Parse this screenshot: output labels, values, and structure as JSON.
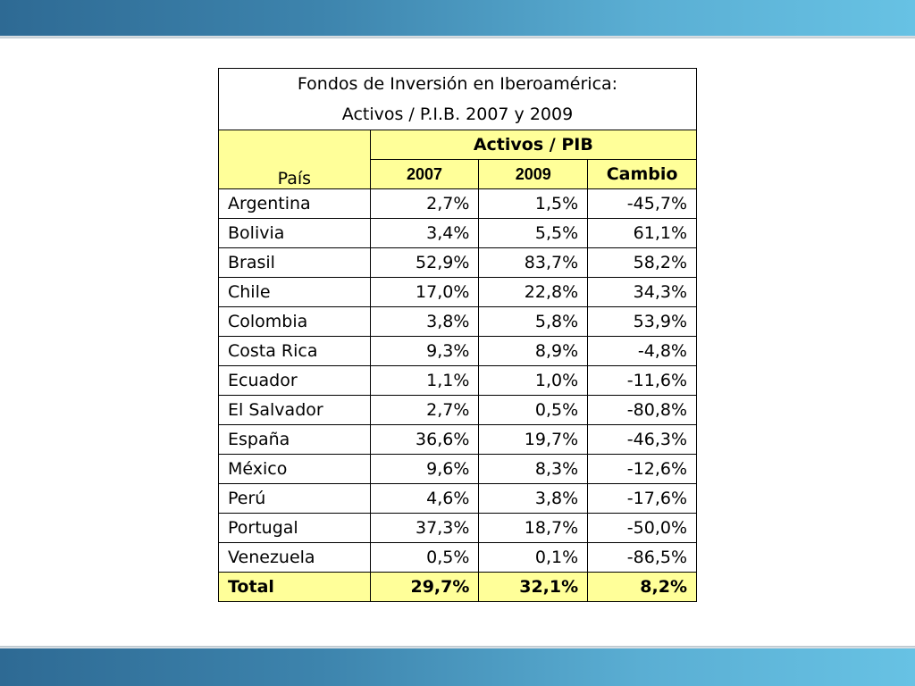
{
  "title_line1": "Fondos de Inversión en Iberoamérica:",
  "title_line2": "Activos / P.I.B. 2007 y 2009",
  "header": {
    "pais": "País",
    "group": "Activos / PIB",
    "col_2007": "2007",
    "col_2009": "2009",
    "col_cambio": "Cambio"
  },
  "rows": [
    {
      "pais": "Argentina",
      "v2007": "2,7%",
      "v2009": "1,5%",
      "cambio": "-45,7%"
    },
    {
      "pais": "Bolivia",
      "v2007": "3,4%",
      "v2009": "5,5%",
      "cambio": "61,1%"
    },
    {
      "pais": "Brasil",
      "v2007": "52,9%",
      "v2009": "83,7%",
      "cambio": "58,2%"
    },
    {
      "pais": "Chile",
      "v2007": "17,0%",
      "v2009": "22,8%",
      "cambio": "34,3%"
    },
    {
      "pais": "Colombia",
      "v2007": "3,8%",
      "v2009": "5,8%",
      "cambio": "53,9%"
    },
    {
      "pais": "Costa Rica",
      "v2007": "9,3%",
      "v2009": "8,9%",
      "cambio": "-4,8%"
    },
    {
      "pais": "Ecuador",
      "v2007": "1,1%",
      "v2009": "1,0%",
      "cambio": "-11,6%"
    },
    {
      "pais": "El Salvador",
      "v2007": "2,7%",
      "v2009": "0,5%",
      "cambio": "-80,8%"
    },
    {
      "pais": "España",
      "v2007": "36,6%",
      "v2009": "19,7%",
      "cambio": "-46,3%"
    },
    {
      "pais": "México",
      "v2007": "9,6%",
      "v2009": "8,3%",
      "cambio": "-12,6%"
    },
    {
      "pais": "Perú",
      "v2007": "4,6%",
      "v2009": "3,8%",
      "cambio": "-17,6%"
    },
    {
      "pais": "Portugal",
      "v2007": "37,3%",
      "v2009": "18,7%",
      "cambio": "-50,0%"
    },
    {
      "pais": "Venezuela",
      "v2007": "0,5%",
      "v2009": "0,1%",
      "cambio": "-86,5%"
    }
  ],
  "total": {
    "pais": "Total",
    "v2007": "29,7%",
    "v2009": "32,1%",
    "cambio": "8,2%"
  },
  "colors": {
    "header_fill": "#ffff99",
    "band_dark": "#2e6a94",
    "band_light": "#67c2e4"
  }
}
